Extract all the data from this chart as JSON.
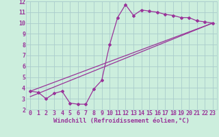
{
  "xlabel": "Windchill (Refroidissement éolien,°C)",
  "bg_color": "#cceedd",
  "grid_color": "#aacccc",
  "line_color": "#993399",
  "xlim": [
    -0.5,
    23.5
  ],
  "ylim": [
    2,
    12
  ],
  "xticks": [
    0,
    1,
    2,
    3,
    4,
    5,
    6,
    7,
    8,
    9,
    10,
    11,
    12,
    13,
    14,
    15,
    16,
    17,
    18,
    19,
    20,
    21,
    22,
    23
  ],
  "yticks": [
    2,
    3,
    4,
    5,
    6,
    7,
    8,
    9,
    10,
    11,
    12
  ],
  "line1_x": [
    0,
    1,
    2,
    3,
    4,
    5,
    6,
    7,
    8,
    9,
    10,
    11,
    12,
    13,
    14,
    15,
    16,
    17,
    18,
    19,
    20,
    21,
    22,
    23
  ],
  "line1_y": [
    3.7,
    3.6,
    3.0,
    3.5,
    3.7,
    2.6,
    2.5,
    2.5,
    3.9,
    4.7,
    8.0,
    10.5,
    11.7,
    10.7,
    11.2,
    11.1,
    11.0,
    10.8,
    10.7,
    10.5,
    10.5,
    10.2,
    10.1,
    10.0
  ],
  "line2_x": [
    0,
    23
  ],
  "line2_y": [
    3.7,
    10.0
  ],
  "line3_x": [
    0,
    23
  ],
  "line3_y": [
    3.2,
    10.0
  ],
  "xlabel_fontsize": 6.5,
  "tick_fontsize": 6.0,
  "linewidth": 0.9,
  "markersize": 2.0
}
